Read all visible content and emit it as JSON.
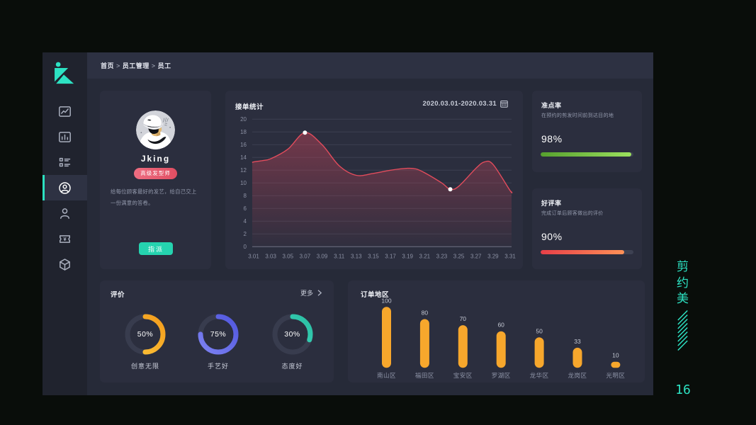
{
  "page": {
    "page_number": "16",
    "brand_vertical": "剪约美",
    "accent_color": "#2de2c3"
  },
  "breadcrumb": {
    "items": [
      "首页",
      "员工管理",
      "员工"
    ],
    "separator": ">"
  },
  "sidebar": {
    "active_index": 3,
    "items": [
      {
        "icon": "line-chart-icon"
      },
      {
        "icon": "bar-chart-icon"
      },
      {
        "icon": "list-icon"
      },
      {
        "icon": "user-circle-icon"
      },
      {
        "icon": "user-icon"
      },
      {
        "icon": "ticket-yen-icon"
      },
      {
        "icon": "cube-icon"
      }
    ]
  },
  "profile": {
    "name": "Jking",
    "badge": "高级发型师",
    "description": "给每位顾客最好的发艺，给自己交上一份满意的答卷。",
    "action_label": "指派"
  },
  "order_stats": {
    "title": "接单统计",
    "date_range": "2020.03.01-2020.03.31"
  },
  "ontime": {
    "title": "准点率",
    "subtitle": "在预约的剪发时间前到达目的地",
    "value": 98,
    "value_label": "98%"
  },
  "rating": {
    "title": "好评率",
    "subtitle": "完成订单后顾客做出的评价",
    "value": 90,
    "value_label": "90%"
  },
  "reviews": {
    "title": "评价",
    "more_label": "更多"
  },
  "regions": {
    "title": "订单地区"
  },
  "chart_data": [
    {
      "type": "line",
      "title": "接单统计",
      "x_tick_labels": [
        "3.01",
        "3.03",
        "3.05",
        "3.07",
        "3.09",
        "3.11",
        "3.13",
        "3.15",
        "3.17",
        "3.19",
        "3.21",
        "3.23",
        "3.25",
        "3.27",
        "3.29",
        "3.31"
      ],
      "x_days": [
        1,
        2,
        3,
        5,
        7,
        9,
        11,
        13,
        15,
        17,
        19,
        20,
        21,
        23,
        24,
        25,
        27,
        28,
        29,
        31
      ],
      "values": [
        13.3,
        13.5,
        13.8,
        15.3,
        17.9,
        16.0,
        12.7,
        11.2,
        11.5,
        12.0,
        12.3,
        12.2,
        11.6,
        10.0,
        9.0,
        9.5,
        12.3,
        13.3,
        12.9,
        8.8
      ],
      "markers": [
        {
          "day": 7,
          "value": 17.9
        },
        {
          "day": 24,
          "value": 9.0
        }
      ],
      "ylim": [
        0,
        20
      ],
      "y_tick_step": 2,
      "line_color": "#e24c5c",
      "area_color": "#c74459",
      "grid": true
    },
    {
      "type": "bar",
      "title": "订单地区",
      "categories": [
        "南山区",
        "福田区",
        "宝安区",
        "罗湖区",
        "龙华区",
        "龙岗区",
        "光明区"
      ],
      "values": [
        100,
        80,
        70,
        60,
        50,
        33,
        10
      ],
      "bar_color": "#f7a72c",
      "value_labels_shown": true
    },
    {
      "type": "donut",
      "title": "评价",
      "gauges": [
        {
          "percent": 50,
          "label": "创意无限",
          "color_start": "#fdc53a",
          "color_end": "#f39c1c"
        },
        {
          "percent": 75,
          "label": "手艺好",
          "color_start": "#7d82f2",
          "color_end": "#5157de"
        },
        {
          "percent": 30,
          "label": "态度好",
          "color_start": "#40e2c6",
          "color_end": "#2bbda2"
        }
      ],
      "track_color": "#383c4e"
    },
    {
      "type": "progress",
      "items": [
        {
          "title": "准点率",
          "percent": 98,
          "colors": [
            "#56a02e",
            "#9ce15e"
          ]
        },
        {
          "title": "好评率",
          "percent": 90,
          "colors": [
            "#e73f48",
            "#fe9157"
          ]
        }
      ]
    }
  ]
}
